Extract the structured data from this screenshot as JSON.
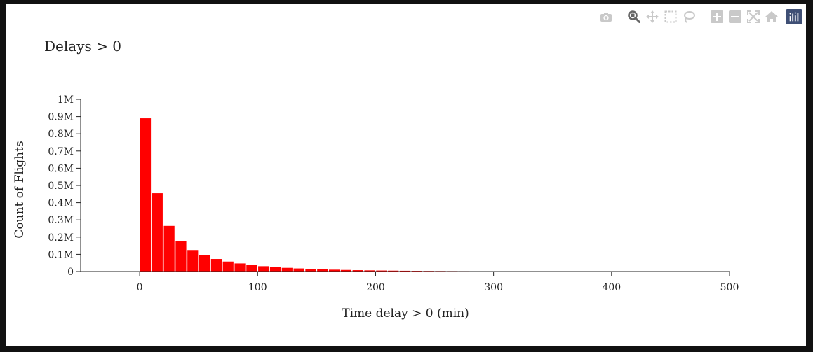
{
  "toolbar": {
    "items": [
      {
        "name": "camera-icon",
        "label": "Download plot as a png"
      },
      {
        "name": "zoom-icon",
        "label": "Zoom"
      },
      {
        "name": "pan-icon",
        "label": "Pan"
      },
      {
        "name": "box-select-icon",
        "label": "Box Select"
      },
      {
        "name": "lasso-select-icon",
        "label": "Lasso Select"
      },
      {
        "name": "zoom-in-icon",
        "label": "Zoom in"
      },
      {
        "name": "zoom-out-icon",
        "label": "Zoom out"
      },
      {
        "name": "autoscale-icon",
        "label": "Autoscale"
      },
      {
        "name": "reset-axes-icon",
        "label": "Reset axes"
      },
      {
        "name": "plotly-logo-icon",
        "label": "Produced with Plotly"
      }
    ],
    "active": "zoom-icon",
    "icon_color": "#c9c9c9",
    "active_color": "#666666",
    "logo_color": "#3f4f75"
  },
  "chart_data": {
    "type": "bar",
    "title": "Delays > 0",
    "xlabel": "Time delay > 0 (min)",
    "ylabel": "Count of Flights",
    "bar_color": "#ff0000",
    "bin_width": 10,
    "xlim": [
      -50,
      500
    ],
    "ylim": [
      0,
      1000000
    ],
    "x_ticks": [
      0,
      100,
      200,
      300,
      400,
      500
    ],
    "x_tick_labels": [
      "0",
      "100",
      "200",
      "300",
      "400",
      "500"
    ],
    "y_ticks": [
      0,
      100000,
      200000,
      300000,
      400000,
      500000,
      600000,
      700000,
      800000,
      900000,
      1000000
    ],
    "y_tick_labels": [
      "0",
      "0.1M",
      "0.2M",
      "0.3M",
      "0.4M",
      "0.5M",
      "0.6M",
      "0.7M",
      "0.8M",
      "0.9M",
      "1M"
    ],
    "grid": false,
    "bins": [
      0,
      10,
      20,
      30,
      40,
      50,
      60,
      70,
      80,
      90,
      100,
      110,
      120,
      130,
      140,
      150,
      160,
      170,
      180,
      190,
      200,
      210,
      220,
      230,
      240,
      250,
      260,
      270,
      280,
      290,
      300,
      310,
      320,
      330,
      340,
      350,
      360,
      370,
      380,
      390
    ],
    "values": [
      890000,
      455000,
      265000,
      175000,
      125000,
      95000,
      73000,
      58000,
      47000,
      38000,
      31000,
      26000,
      21500,
      18000,
      15000,
      12800,
      10800,
      9200,
      7900,
      6800,
      5900,
      5100,
      4400,
      3800,
      3300,
      2900,
      2500,
      2200,
      1900,
      1650,
      1450,
      1250,
      1100,
      950,
      830,
      720,
      630,
      550,
      480,
      420
    ]
  }
}
